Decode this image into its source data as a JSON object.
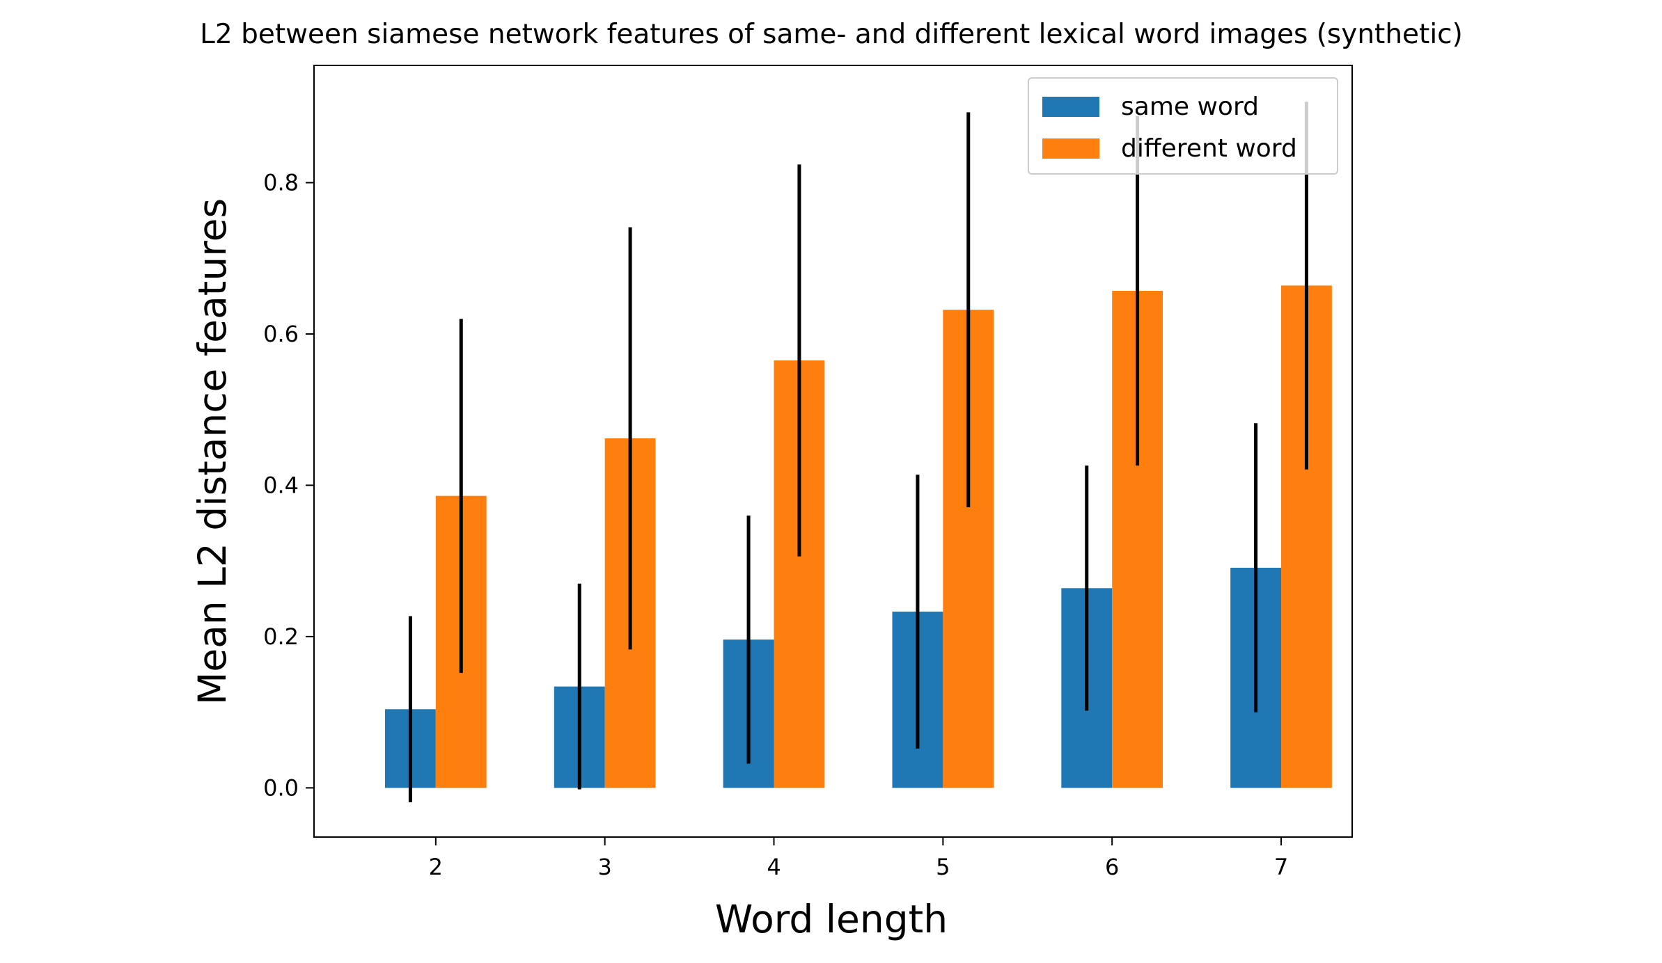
{
  "chart_data": {
    "type": "bar",
    "title": "L2 between siamese network features of same- and different lexical word images (synthetic)",
    "xlabel": "Word length",
    "ylabel": "Mean L2 distance features",
    "categories": [
      "2",
      "3",
      "4",
      "5",
      "6",
      "7"
    ],
    "x": [
      2,
      3,
      4,
      5,
      6,
      7
    ],
    "ylim": [
      -0.065,
      0.955
    ],
    "xlim": [
      1.28,
      7.42
    ],
    "yticks": [
      0.0,
      0.2,
      0.4,
      0.6,
      0.8
    ],
    "ytick_labels": [
      "0.0",
      "0.2",
      "0.4",
      "0.6",
      "0.8"
    ],
    "grid": false,
    "legend_position": "top-right",
    "bar_width": 0.3,
    "series": [
      {
        "name": "same word",
        "color": "#1f77b4",
        "values": [
          0.104,
          0.134,
          0.196,
          0.233,
          0.264,
          0.291
        ],
        "error": [
          0.123,
          0.136,
          0.164,
          0.181,
          0.162,
          0.191
        ]
      },
      {
        "name": "different word",
        "color": "#ff7f0e",
        "values": [
          0.386,
          0.462,
          0.565,
          0.632,
          0.657,
          0.664
        ],
        "error": [
          0.234,
          0.279,
          0.259,
          0.261,
          0.231,
          0.243
        ]
      }
    ],
    "errorbar_color": "#000000"
  }
}
